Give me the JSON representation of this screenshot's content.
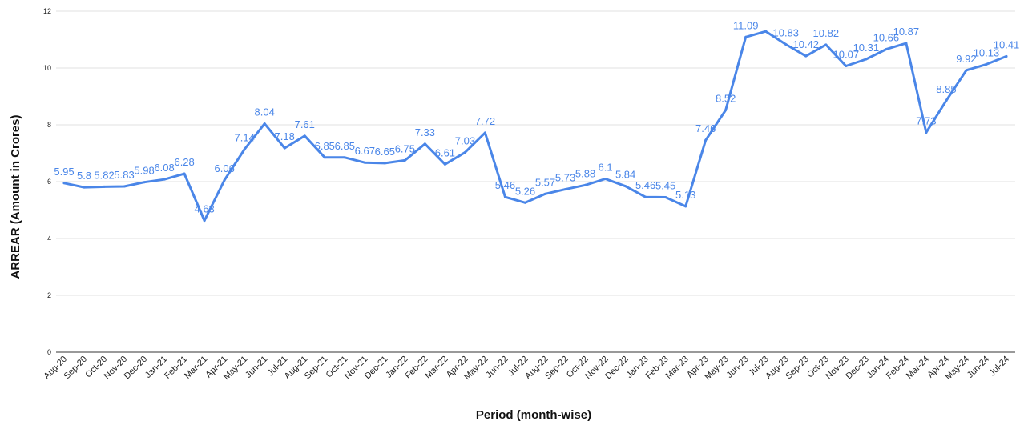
{
  "chart_data": {
    "type": "line",
    "title": "",
    "xlabel": "Period (month-wise)",
    "ylabel": "ARREAR (Amount in Crores)",
    "ylim": [
      0,
      12
    ],
    "yticks": [
      0,
      2,
      4,
      6,
      8,
      10,
      12
    ],
    "grid": true,
    "line_color": "#4a86e8",
    "categories": [
      "Aug-20",
      "Sep-20",
      "Oct-20",
      "Nov-20",
      "Dec-20",
      "Jan-21",
      "Feb-21",
      "Mar-21",
      "Apr-21",
      "May-21",
      "Jun-21",
      "Jul-21",
      "Aug-21",
      "Sep-21",
      "Oct-21",
      "Nov-21",
      "Dec-21",
      "Jan-22",
      "Feb-22",
      "Mar-22",
      "Apr-22",
      "May-22",
      "Jun-22",
      "Jul-22",
      "Aug-22",
      "Sep-22",
      "Oct-22",
      "Nov-22",
      "Dec-22",
      "Jan-23",
      "Feb-23",
      "Mar-23",
      "Apr-23",
      "May-23",
      "Jun-23",
      "Jul-23",
      "Aug-23",
      "Sep-23",
      "Oct-23",
      "Nov-23",
      "Dec-23",
      "Jan-24",
      "Feb-24",
      "Mar-24",
      "Apr-24",
      "May-24",
      "Jun-24",
      "Jul-24"
    ],
    "values": [
      5.95,
      5.8,
      5.82,
      5.83,
      5.98,
      6.08,
      6.28,
      4.63,
      6.06,
      7.14,
      8.04,
      7.18,
      7.61,
      6.85,
      6.85,
      6.67,
      6.65,
      6.75,
      7.33,
      6.61,
      7.03,
      7.72,
      5.46,
      5.26,
      5.57,
      5.73,
      5.88,
      6.1,
      5.84,
      5.46,
      5.45,
      5.13,
      7.46,
      8.52,
      11.09,
      11.29,
      10.83,
      10.42,
      10.82,
      10.07,
      10.31,
      10.66,
      10.87,
      7.73,
      8.85,
      9.92,
      10.13,
      10.41
    ],
    "labels": [
      "5.95",
      "5.8",
      "5.82",
      "5.83",
      "5.98",
      "6.08",
      "6.28",
      "4.63",
      "6.06",
      "7.14",
      "8.04",
      "7.18",
      "7.61",
      "6.85",
      "6.85",
      "6.67",
      "6.65",
      "6.75",
      "7.33",
      "6.61",
      "7.03",
      "7.72",
      "5.46",
      "5.26",
      "5.57",
      "5.73",
      "5.88",
      "6.1",
      "5.84",
      "5.46",
      "5.45",
      "5.13",
      "7.46",
      "8.52",
      "11.09",
      "",
      "10.83",
      "10.42",
      "10.82",
      "10.07",
      "10.31",
      "10.66",
      "10.87",
      "7.73",
      "8.85",
      "9.92",
      "10.13",
      "10.41"
    ]
  }
}
